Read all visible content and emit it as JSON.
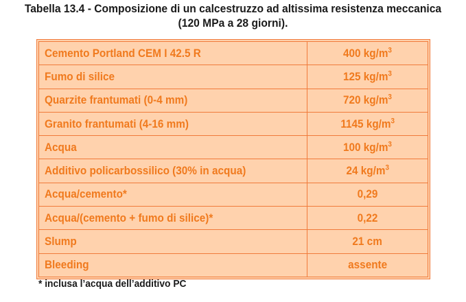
{
  "caption": {
    "line1": "Tabella 13.4 - Composizione di un calcestruzzo ad altissima resistenza meccanica",
    "line2": "(120 MPa a 28 giorni)."
  },
  "rows": [
    {
      "label": "Cemento Portland CEM I 42.5 R",
      "value": "400 kg/m",
      "sup": "3"
    },
    {
      "label": "Fumo di silice",
      "value": "125 kg/m",
      "sup": "3"
    },
    {
      "label": "Quarzite frantumati (0-4 mm)",
      "value": "720 kg/m",
      "sup": "3"
    },
    {
      "label": "Granito frantumati (4-16 mm)",
      "value": "1145 kg/m",
      "sup": "3"
    },
    {
      "label": "Acqua",
      "value": "100 kg/m",
      "sup": "3"
    },
    {
      "label": "Additivo policarbossilico (30% in acqua)",
      "value": "24 kg/m",
      "sup": "3"
    },
    {
      "label": "Acqua/cemento*",
      "value": "0,29",
      "sup": ""
    },
    {
      "label": "Acqua/(cemento + fumo di silice)*",
      "value": "0,22",
      "sup": ""
    },
    {
      "label": "Slump",
      "value": "21 cm",
      "sup": ""
    },
    {
      "label": "Bleeding",
      "value": "assente",
      "sup": ""
    }
  ],
  "footnote": "* inclusa l’acqua dell’additivo PC",
  "colors": {
    "table_fill": "#ffd2ad",
    "table_border": "#f07a3a",
    "table_text": "#f07a1e"
  }
}
